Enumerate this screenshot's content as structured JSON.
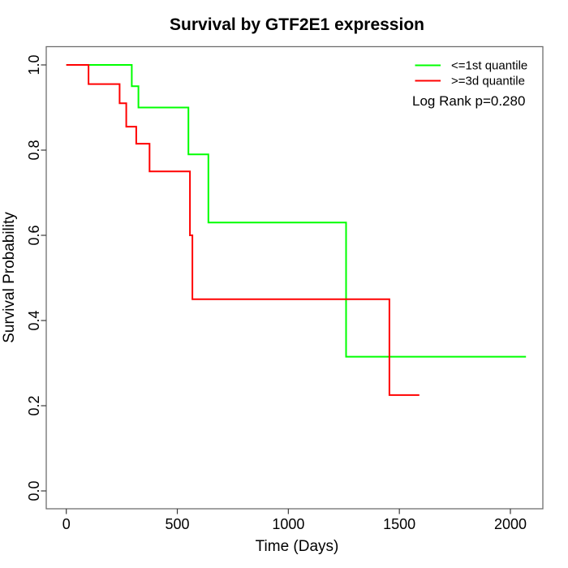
{
  "title": "Survival by GTF2E1 expression",
  "axes": {
    "x": {
      "label": "Time (Days)",
      "ticks": [
        {
          "label": "0",
          "value": 0
        },
        {
          "label": "500",
          "value": 500
        },
        {
          "label": "1000",
          "value": 1000
        },
        {
          "label": "1500",
          "value": 1500
        },
        {
          "label": "2000",
          "value": 2000
        }
      ]
    },
    "y": {
      "label": "Survival Probability",
      "ticks": [
        {
          "label": "0.0",
          "value": 0.0
        },
        {
          "label": "0.2",
          "value": 0.2
        },
        {
          "label": "0.4",
          "value": 0.4
        },
        {
          "label": "0.6",
          "value": 0.6
        },
        {
          "label": "0.8",
          "value": 0.8
        },
        {
          "label": "1.0",
          "value": 1.0
        }
      ]
    }
  },
  "legend": {
    "note": "Log Rank p=0.280"
  },
  "chart_data": {
    "type": "line",
    "subtype": "kaplan-meier-step",
    "title": "Survival by GTF2E1 expression",
    "xlabel": "Time (Days)",
    "ylabel": "Survival Probability",
    "xlim": [
      0,
      2100
    ],
    "ylim": [
      0.0,
      1.0
    ],
    "x_ticks": [
      0,
      500,
      1000,
      1500,
      2000
    ],
    "y_ticks": [
      0.0,
      0.2,
      0.4,
      0.6,
      0.8,
      1.0
    ],
    "grid": false,
    "legend_position": "top-right",
    "annotation": "Log Rank p=0.280",
    "series": [
      {
        "name": "<=1st quantile",
        "color": "#00ff00",
        "start_survival": 1.0,
        "drops": [
          {
            "t": 295,
            "p": 0.95
          },
          {
            "t": 325,
            "p": 0.9
          },
          {
            "t": 550,
            "p": 0.79
          },
          {
            "t": 640,
            "p": 0.63
          },
          {
            "t": 1260,
            "p": 0.315
          }
        ],
        "end_t": 2070
      },
      {
        "name": ">=3d quantile",
        "color": "#ff0000",
        "start_survival": 1.0,
        "drops": [
          {
            "t": 100,
            "p": 0.955
          },
          {
            "t": 240,
            "p": 0.91
          },
          {
            "t": 270,
            "p": 0.855
          },
          {
            "t": 315,
            "p": 0.815
          },
          {
            "t": 375,
            "p": 0.75
          },
          {
            "t": 557,
            "p": 0.6
          },
          {
            "t": 568,
            "p": 0.45
          },
          {
            "t": 1455,
            "p": 0.225
          }
        ],
        "end_t": 1590
      }
    ]
  }
}
